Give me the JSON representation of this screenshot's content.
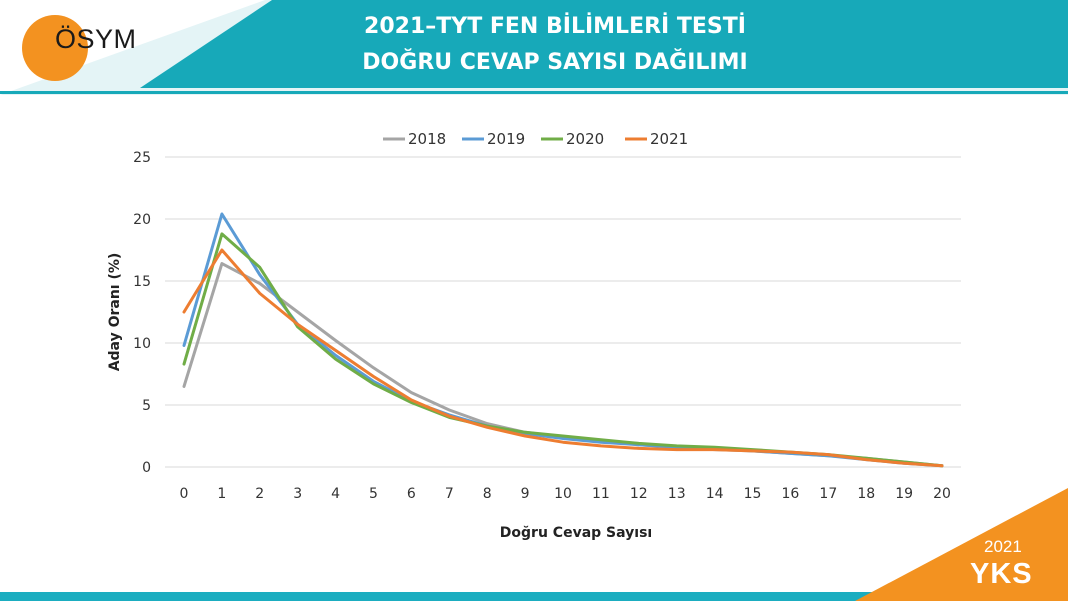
{
  "header": {
    "logo_text": "ÖSYM",
    "title_line1": "2021–TYT FEN BİLİMLERİ TESTİ",
    "title_line2": "DOĞRU CEVAP SAYISI DAĞILIMI"
  },
  "badge": {
    "year": "2021",
    "label": "YKS"
  },
  "colors": {
    "header_teal": "#17a9b9",
    "accent_orange": "#f39220",
    "footer_teal": "#1badc0"
  },
  "chart_data": {
    "type": "line",
    "title": "",
    "xlabel": "Doğru Cevap Sayısı",
    "ylabel": "Aday Oranı (%)",
    "x": [
      0,
      1,
      2,
      3,
      4,
      5,
      6,
      7,
      8,
      9,
      10,
      11,
      12,
      13,
      14,
      15,
      16,
      17,
      18,
      19,
      20
    ],
    "ylim": [
      0,
      25
    ],
    "yticks": [
      0,
      5,
      10,
      15,
      20,
      25
    ],
    "grid": true,
    "legend_position": "top",
    "series": [
      {
        "name": "2018",
        "color": "#a5a5a5",
        "values": [
          6.5,
          16.4,
          14.8,
          12.5,
          10.2,
          8.0,
          6.0,
          4.6,
          3.5,
          2.8,
          2.4,
          2.1,
          1.8,
          1.6,
          1.4,
          1.3,
          1.1,
          0.9,
          0.7,
          0.4,
          0.1
        ]
      },
      {
        "name": "2019",
        "color": "#5b9bd5",
        "values": [
          9.8,
          20.4,
          15.5,
          11.5,
          9.0,
          6.9,
          5.3,
          4.2,
          3.3,
          2.7,
          2.3,
          2.0,
          1.8,
          1.6,
          1.5,
          1.3,
          1.1,
          0.9,
          0.6,
          0.3,
          0.1
        ]
      },
      {
        "name": "2020",
        "color": "#70ad47",
        "values": [
          8.3,
          18.8,
          16.1,
          11.3,
          8.7,
          6.7,
          5.2,
          4.0,
          3.3,
          2.8,
          2.5,
          2.2,
          1.9,
          1.7,
          1.6,
          1.4,
          1.2,
          1.0,
          0.7,
          0.4,
          0.1
        ]
      },
      {
        "name": "2021",
        "color": "#ed7d31",
        "values": [
          12.5,
          17.5,
          14.0,
          11.5,
          9.4,
          7.3,
          5.4,
          4.1,
          3.2,
          2.5,
          2.0,
          1.7,
          1.5,
          1.4,
          1.4,
          1.3,
          1.2,
          1.0,
          0.6,
          0.3,
          0.1
        ]
      }
    ]
  }
}
